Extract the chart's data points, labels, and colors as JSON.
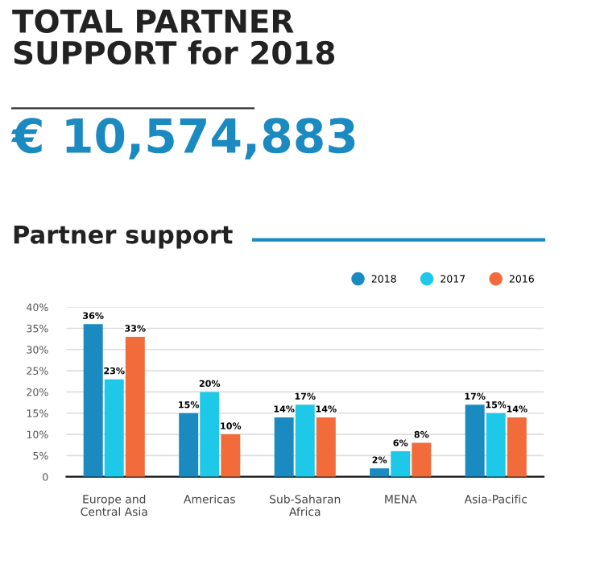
{
  "chart_data": {
    "type": "bar",
    "title": "Partner support",
    "annotations": [
      "TOTAL PARTNER\nSUPPORT for 2018",
      "€ 10,574,883"
    ],
    "categories": [
      "Europe and\nCentral Asia",
      "Americas",
      "Sub-Saharan\nAfrica",
      "MENA",
      "Asia-Pacific"
    ],
    "series": [
      {
        "name": "2018",
        "color": "#1a8ac0",
        "values": [
          36,
          15,
          14,
          2,
          17
        ],
        "value_labels": [
          "36%",
          "15%",
          "14%",
          "2%",
          "17%"
        ]
      },
      {
        "name": "2017",
        "color": "#1ec8e8",
        "values": [
          23,
          20,
          17,
          6,
          15
        ],
        "value_labels": [
          "23%",
          "20%",
          "17%",
          "6%",
          "15%"
        ]
      },
      {
        "name": "2016",
        "color": "#f26b3a",
        "values": [
          33,
          10,
          14,
          8,
          14
        ],
        "value_labels": [
          "33%",
          "10%",
          "14%",
          "8%",
          "14%"
        ]
      }
    ],
    "ylim": [
      0,
      40
    ],
    "yticks": [
      0,
      {
        "value": 5,
        "label": "5%"
      },
      {
        "value": 10,
        "label": "10%"
      },
      {
        "value": 15,
        "label": "15%"
      },
      {
        "value": 20,
        "label": "20%"
      },
      {
        "value": 25,
        "label": "25%"
      },
      {
        "value": 30,
        "label": "30%"
      },
      {
        "value": 35,
        "label": "35%"
      },
      {
        "value": 40,
        "label": "40%"
      }
    ],
    "grid": "y",
    "legend": "top right",
    "marker": "circle"
  }
}
